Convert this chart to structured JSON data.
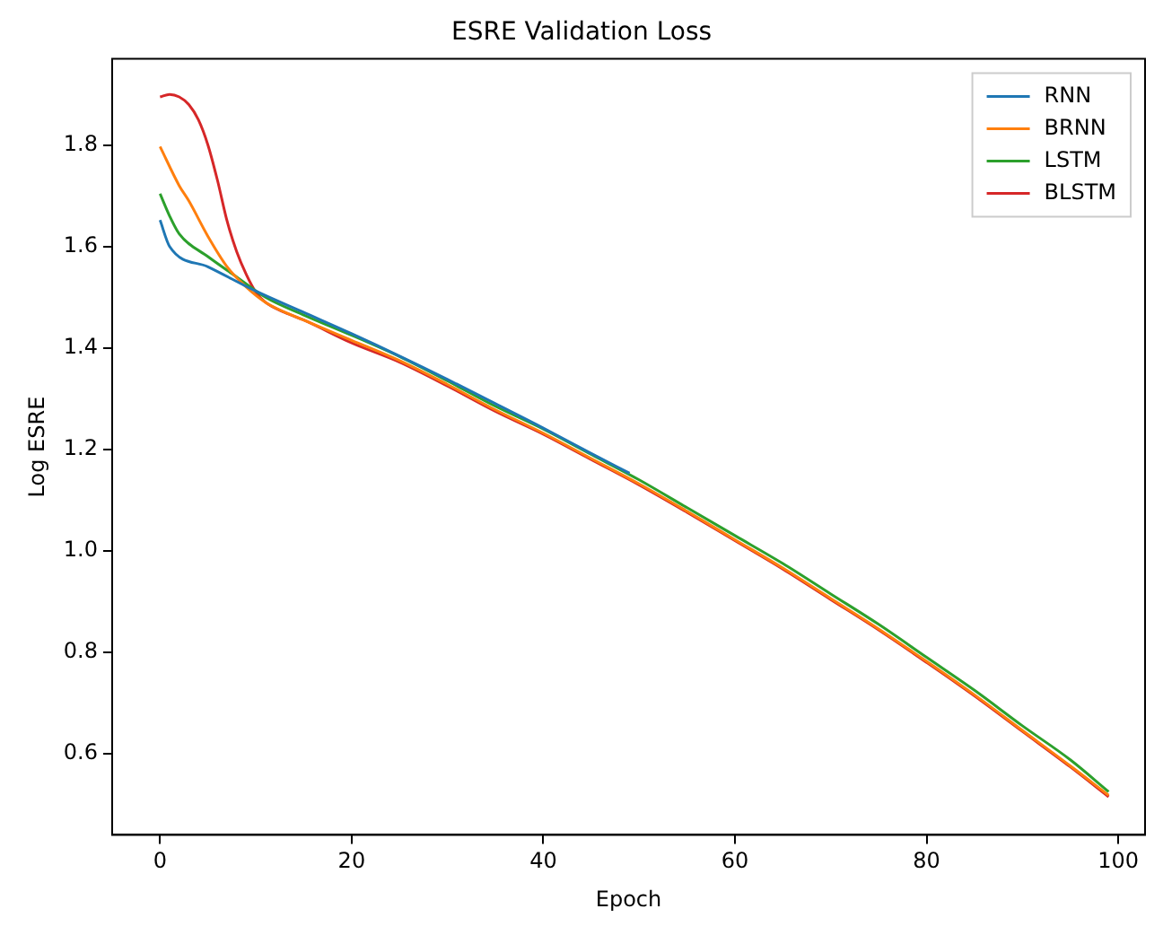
{
  "chart_data": {
    "type": "line",
    "title": "ESRE Validation Loss",
    "xlabel": "Epoch",
    "ylabel": "Log ESRE",
    "xlim": [
      -5,
      102.8
    ],
    "ylim": [
      0.44,
      1.97
    ],
    "xticks": [
      0,
      20,
      40,
      60,
      80,
      100
    ],
    "yticks": [
      {
        "value": 0.6,
        "label": "0.6"
      },
      {
        "value": 0.8,
        "label": "0.8"
      },
      {
        "value": 1.0,
        "label": "1.0"
      },
      {
        "value": 1.2,
        "label": "1.2"
      },
      {
        "value": 1.4,
        "label": "1.4"
      },
      {
        "value": 1.6,
        "label": "1.6"
      },
      {
        "value": 1.8,
        "label": "1.8"
      }
    ],
    "grid": false,
    "legend": "top right",
    "marker": "none",
    "line_style": "solid",
    "series": [
      {
        "name": "RNN",
        "color": "#1f77b4",
        "x": [
          0,
          1,
          5,
          10,
          15,
          20,
          25,
          30,
          35,
          40,
          45,
          49
        ],
        "values": [
          1.652,
          1.6,
          1.56,
          1.512,
          1.47,
          1.428,
          1.384,
          1.338,
          1.29,
          1.242,
          1.192,
          1.153
        ]
      },
      {
        "name": "BRNN",
        "color": "#ff7f0e",
        "x": [
          0,
          2,
          3,
          5,
          7,
          9,
          11,
          15,
          20,
          25,
          30,
          35,
          40,
          45,
          50,
          55,
          60,
          65,
          70,
          75,
          80,
          85,
          90,
          95,
          99
        ],
        "values": [
          1.797,
          1.72,
          1.69,
          1.62,
          1.56,
          1.52,
          1.49,
          1.455,
          1.415,
          1.375,
          1.328,
          1.278,
          1.232,
          1.182,
          1.132,
          1.078,
          1.022,
          0.966,
          0.906,
          0.846,
          0.782,
          0.716,
          0.646,
          0.576,
          0.518
        ]
      },
      {
        "name": "LSTM",
        "color": "#2ca02c",
        "x": [
          0,
          1,
          2,
          5,
          8,
          11,
          15,
          20,
          25,
          30,
          35,
          40,
          45,
          50,
          55,
          60,
          65,
          70,
          75,
          80,
          85,
          90,
          95,
          99
        ],
        "values": [
          1.704,
          1.66,
          1.625,
          1.58,
          1.54,
          1.5,
          1.465,
          1.425,
          1.383,
          1.335,
          1.285,
          1.24,
          1.19,
          1.14,
          1.085,
          1.03,
          0.975,
          0.915,
          0.855,
          0.79,
          0.725,
          0.655,
          0.588,
          0.525
        ]
      },
      {
        "name": "BLSTM",
        "color": "#d62728",
        "x": [
          0,
          1,
          2,
          3,
          4,
          5,
          6,
          7,
          8,
          9,
          10,
          11,
          13,
          15,
          20,
          25,
          30,
          35,
          40,
          45,
          50,
          55,
          60,
          65,
          70,
          75,
          80,
          85,
          90,
          95,
          99
        ],
        "values": [
          1.895,
          1.9,
          1.895,
          1.88,
          1.85,
          1.8,
          1.73,
          1.65,
          1.59,
          1.545,
          1.51,
          1.49,
          1.47,
          1.455,
          1.41,
          1.372,
          1.325,
          1.275,
          1.23,
          1.18,
          1.13,
          1.076,
          1.02,
          0.964,
          0.904,
          0.844,
          0.78,
          0.714,
          0.644,
          0.574,
          0.515
        ]
      }
    ]
  }
}
